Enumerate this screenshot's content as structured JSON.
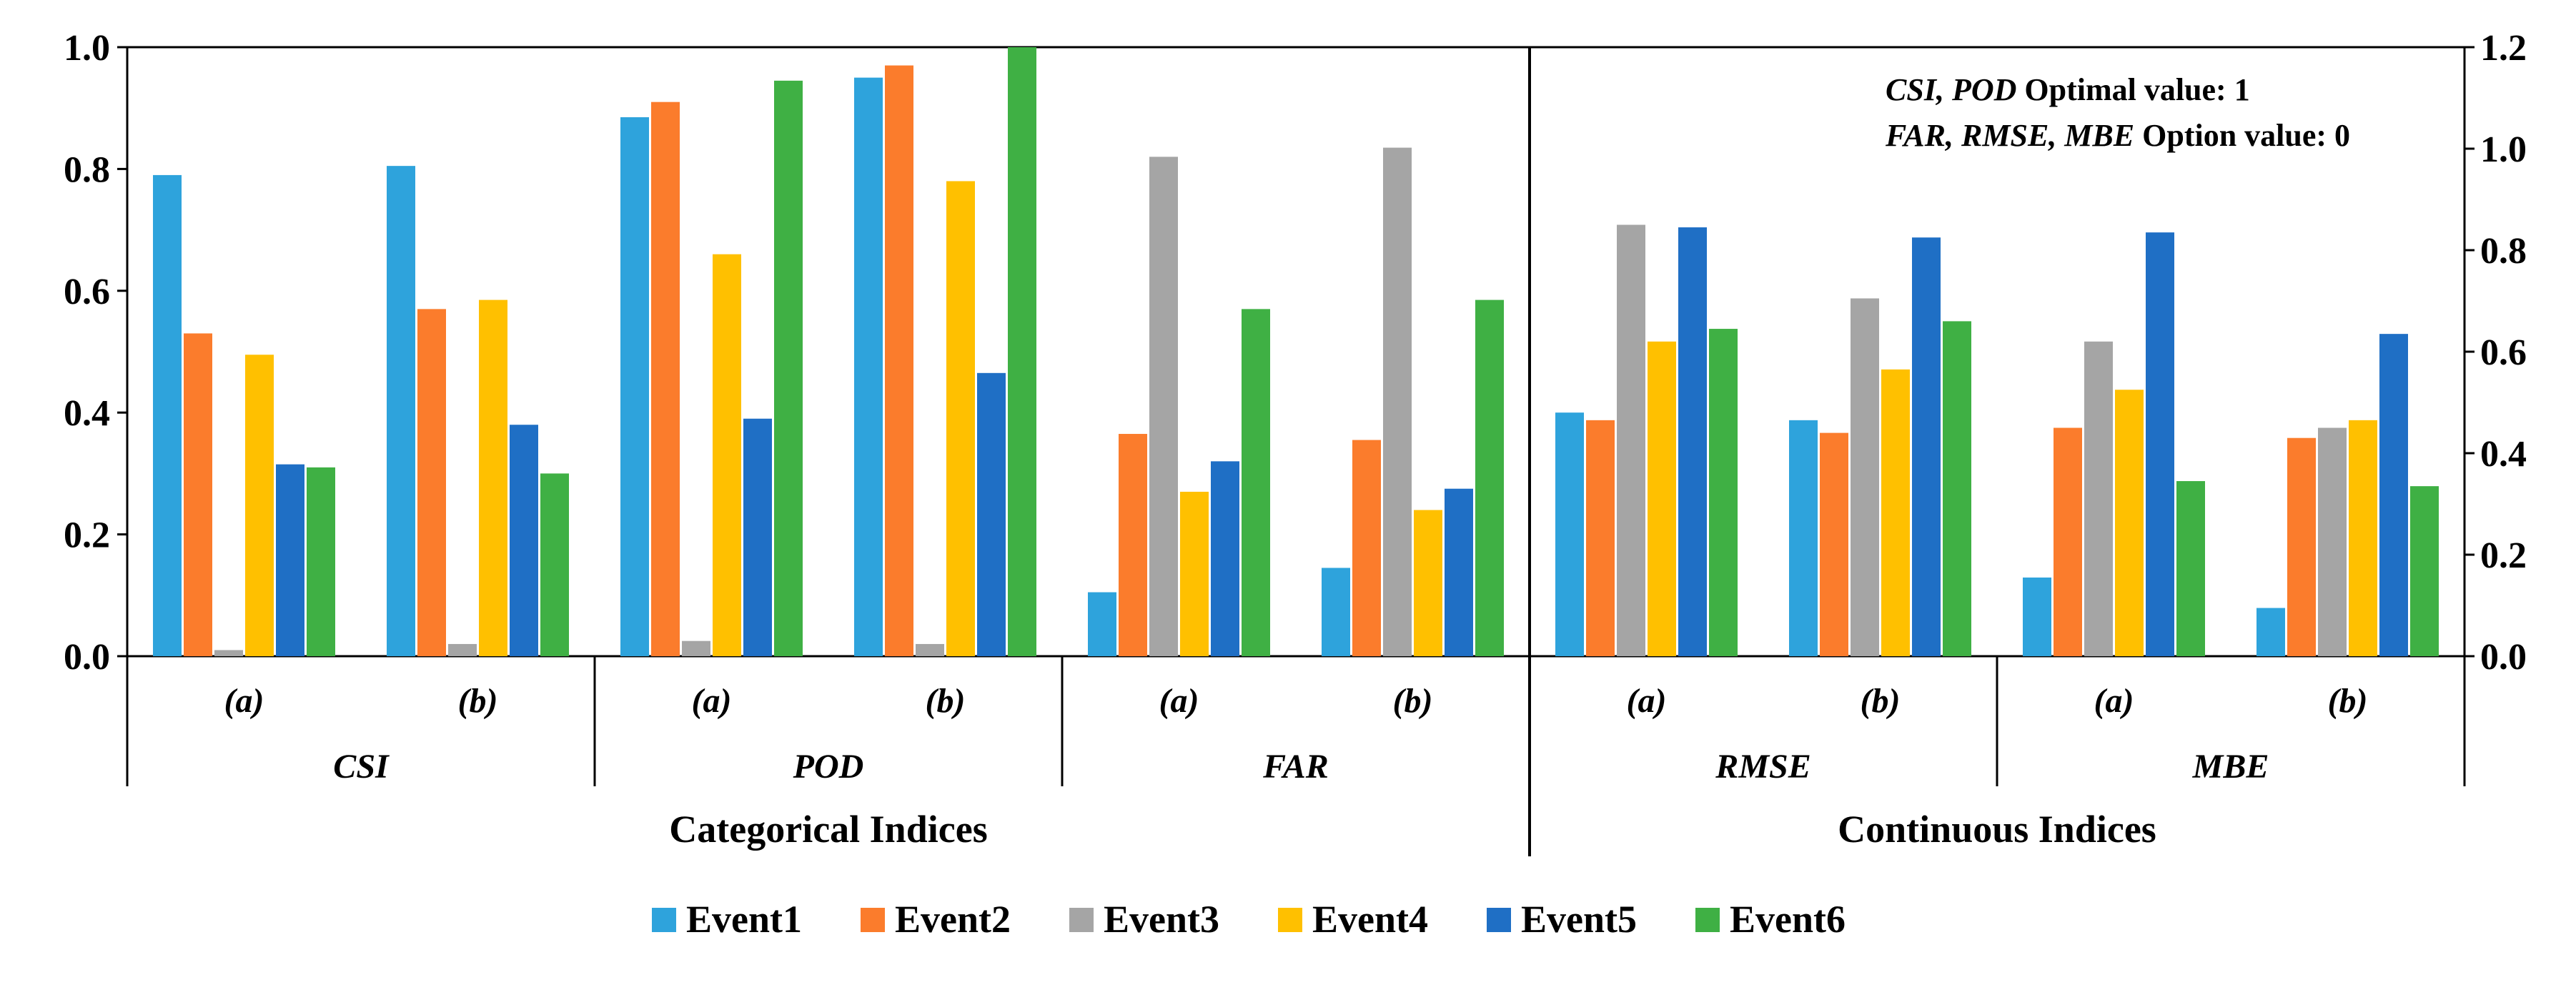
{
  "chart_data": {
    "type": "bar",
    "series_names": [
      "Event1",
      "Event2",
      "Event3",
      "Event4",
      "Event5",
      "Event6"
    ],
    "colors": [
      "#2ea3dc",
      "#fb7c2c",
      "#a5a5a5",
      "#ffc000",
      "#1f6fc5",
      "#3fb044"
    ],
    "left_axis": {
      "ylim": [
        0,
        1.0
      ],
      "ticks": [
        "0.0",
        "0.2",
        "0.4",
        "0.6",
        "0.8",
        "1.0"
      ]
    },
    "right_axis": {
      "ylim": [
        0,
        1.2
      ],
      "ticks": [
        "0.0",
        "0.2",
        "0.4",
        "0.6",
        "0.8",
        "1.0",
        "1.2"
      ]
    },
    "sections": [
      {
        "name": "Categorical Indices",
        "axis": "left"
      },
      {
        "name": "Continuous Indices",
        "axis": "right"
      }
    ],
    "groups": [
      {
        "name": "CSI",
        "section": 0,
        "subgroups": [
          {
            "label": "(a)",
            "values": [
              0.79,
              0.53,
              0.01,
              0.495,
              0.315,
              0.31
            ]
          },
          {
            "label": "(b)",
            "values": [
              0.805,
              0.57,
              0.02,
              0.585,
              0.38,
              0.3
            ]
          }
        ]
      },
      {
        "name": "POD",
        "section": 0,
        "subgroups": [
          {
            "label": "(a)",
            "values": [
              0.885,
              0.91,
              0.025,
              0.66,
              0.39,
              0.945
            ]
          },
          {
            "label": "(b)",
            "values": [
              0.95,
              0.97,
              0.02,
              0.78,
              0.465,
              1.0
            ]
          }
        ]
      },
      {
        "name": "FAR",
        "section": 0,
        "subgroups": [
          {
            "label": "(a)",
            "values": [
              0.105,
              0.365,
              0.82,
              0.27,
              0.32,
              0.57
            ]
          },
          {
            "label": "(b)",
            "values": [
              0.145,
              0.355,
              0.835,
              0.24,
              0.275,
              0.585
            ]
          }
        ]
      },
      {
        "name": "RMSE",
        "section": 1,
        "subgroups": [
          {
            "label": "(a)",
            "values": [
              0.48,
              0.465,
              0.85,
              0.62,
              0.845,
              0.645
            ]
          },
          {
            "label": "(b)",
            "values": [
              0.465,
              0.44,
              0.705,
              0.565,
              0.825,
              0.66
            ]
          }
        ]
      },
      {
        "name": "MBE",
        "section": 1,
        "subgroups": [
          {
            "label": "(a)",
            "values": [
              0.155,
              0.45,
              0.62,
              0.525,
              0.835,
              0.345
            ]
          },
          {
            "label": "(b)",
            "values": [
              0.095,
              0.43,
              0.45,
              0.465,
              0.635,
              0.335
            ]
          }
        ]
      }
    ],
    "annotations": [
      {
        "italic": "CSI, POD",
        "text": " Optimal value: 1"
      },
      {
        "italic": "FAR, RMSE, MBE",
        "text": " Option value: 0"
      }
    ]
  }
}
